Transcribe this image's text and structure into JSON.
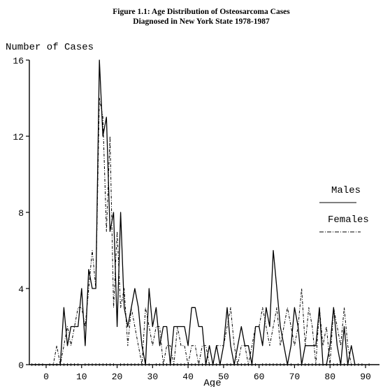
{
  "chart_data": {
    "type": "line",
    "title": "Figure 1.1: Age Distribution of Osteosarcoma Cases",
    "subtitle": "Diagnosed in New York State 1978-1987",
    "ylabel": "Number of Cases",
    "xlabel": "Age",
    "xlim": [
      -4,
      91
    ],
    "ylim": [
      0,
      16
    ],
    "x_ticks": [
      0,
      10,
      20,
      30,
      40,
      50,
      60,
      70,
      80,
      90
    ],
    "y_ticks": [
      0,
      4,
      8,
      12,
      16
    ],
    "legend": "right",
    "series": [
      {
        "name": "Males",
        "style": "solid",
        "color": "#000000",
        "points": [
          [
            -4,
            0
          ],
          [
            4,
            0
          ],
          [
            5,
            3
          ],
          [
            6,
            1
          ],
          [
            7,
            2
          ],
          [
            8,
            2
          ],
          [
            9,
            2
          ],
          [
            10,
            4
          ],
          [
            11,
            1
          ],
          [
            12,
            5
          ],
          [
            13,
            4
          ],
          [
            14,
            4
          ],
          [
            15,
            16
          ],
          [
            16,
            12
          ],
          [
            17,
            13
          ],
          [
            18,
            7
          ],
          [
            19,
            8
          ],
          [
            20,
            2
          ],
          [
            21,
            8
          ],
          [
            22,
            3
          ],
          [
            23,
            2
          ],
          [
            24,
            3
          ],
          [
            25,
            4
          ],
          [
            26,
            3
          ],
          [
            27,
            1
          ],
          [
            28,
            0
          ],
          [
            29,
            4
          ],
          [
            30,
            2
          ],
          [
            31,
            3
          ],
          [
            32,
            1
          ],
          [
            33,
            2
          ],
          [
            34,
            2
          ],
          [
            35,
            0
          ],
          [
            36,
            2
          ],
          [
            37,
            2
          ],
          [
            38,
            2
          ],
          [
            39,
            2
          ],
          [
            40,
            1
          ],
          [
            41,
            3
          ],
          [
            42,
            3
          ],
          [
            43,
            2
          ],
          [
            44,
            2
          ],
          [
            45,
            0
          ],
          [
            46,
            1
          ],
          [
            47,
            0
          ],
          [
            48,
            1
          ],
          [
            49,
            0
          ],
          [
            50,
            1
          ],
          [
            51,
            3
          ],
          [
            52,
            1
          ],
          [
            53,
            0
          ],
          [
            54,
            1
          ],
          [
            55,
            2
          ],
          [
            56,
            1
          ],
          [
            57,
            1
          ],
          [
            58,
            0
          ],
          [
            59,
            2
          ],
          [
            60,
            2
          ],
          [
            61,
            1
          ],
          [
            62,
            3
          ],
          [
            63,
            2
          ],
          [
            64,
            6
          ],
          [
            65,
            4
          ],
          [
            66,
            2
          ],
          [
            67,
            1
          ],
          [
            68,
            0
          ],
          [
            69,
            1
          ],
          [
            70,
            3
          ],
          [
            71,
            2
          ],
          [
            72,
            0
          ],
          [
            73,
            1
          ],
          [
            74,
            1
          ],
          [
            75,
            1
          ],
          [
            76,
            1
          ],
          [
            77,
            3
          ],
          [
            78,
            0
          ],
          [
            79,
            0
          ],
          [
            80,
            1
          ],
          [
            81,
            3
          ],
          [
            82,
            1
          ],
          [
            83,
            0
          ],
          [
            84,
            2
          ],
          [
            85,
            0
          ],
          [
            86,
            1
          ],
          [
            87,
            0
          ]
        ]
      },
      {
        "name": "Females",
        "style": "dash-dot",
        "color": "#000000",
        "points": [
          [
            -4,
            0
          ],
          [
            2,
            0
          ],
          [
            3,
            1
          ],
          [
            4,
            0
          ],
          [
            5,
            1
          ],
          [
            6,
            2
          ],
          [
            7,
            1
          ],
          [
            8,
            2
          ],
          [
            9,
            3
          ],
          [
            10,
            3
          ],
          [
            11,
            2
          ],
          [
            12,
            4
          ],
          [
            13,
            6
          ],
          [
            14,
            4
          ],
          [
            15,
            14
          ],
          [
            16,
            13
          ],
          [
            17,
            7
          ],
          [
            18,
            12
          ],
          [
            19,
            3
          ],
          [
            20,
            7
          ],
          [
            21,
            3
          ],
          [
            22,
            4
          ],
          [
            23,
            1
          ],
          [
            24,
            3
          ],
          [
            25,
            2
          ],
          [
            26,
            1
          ],
          [
            27,
            0
          ],
          [
            28,
            3
          ],
          [
            29,
            2
          ],
          [
            30,
            1
          ],
          [
            31,
            2
          ],
          [
            32,
            2
          ],
          [
            33,
            0
          ],
          [
            34,
            1
          ],
          [
            35,
            1
          ],
          [
            36,
            0
          ],
          [
            37,
            2
          ],
          [
            38,
            1
          ],
          [
            39,
            1
          ],
          [
            40,
            0
          ],
          [
            41,
            1
          ],
          [
            42,
            1
          ],
          [
            43,
            0
          ],
          [
            44,
            1
          ],
          [
            45,
            1
          ],
          [
            46,
            0
          ],
          [
            47,
            0
          ],
          [
            48,
            1
          ],
          [
            49,
            1
          ],
          [
            50,
            1
          ],
          [
            51,
            2
          ],
          [
            52,
            3
          ],
          [
            53,
            1
          ],
          [
            54,
            0
          ],
          [
            55,
            1
          ],
          [
            56,
            1
          ],
          [
            57,
            0
          ],
          [
            58,
            1
          ],
          [
            59,
            2
          ],
          [
            60,
            2
          ],
          [
            61,
            3
          ],
          [
            62,
            2
          ],
          [
            63,
            1
          ],
          [
            64,
            2
          ],
          [
            65,
            3
          ],
          [
            66,
            1
          ],
          [
            67,
            2
          ],
          [
            68,
            3
          ],
          [
            69,
            2
          ],
          [
            70,
            1
          ],
          [
            71,
            2
          ],
          [
            72,
            4
          ],
          [
            73,
            1
          ],
          [
            74,
            3
          ],
          [
            75,
            2
          ],
          [
            76,
            0
          ],
          [
            77,
            3
          ],
          [
            78,
            1
          ],
          [
            79,
            2
          ],
          [
            80,
            0
          ],
          [
            81,
            3
          ],
          [
            82,
            2
          ],
          [
            83,
            1
          ],
          [
            84,
            3
          ],
          [
            85,
            1
          ],
          [
            86,
            0
          ]
        ]
      }
    ]
  }
}
